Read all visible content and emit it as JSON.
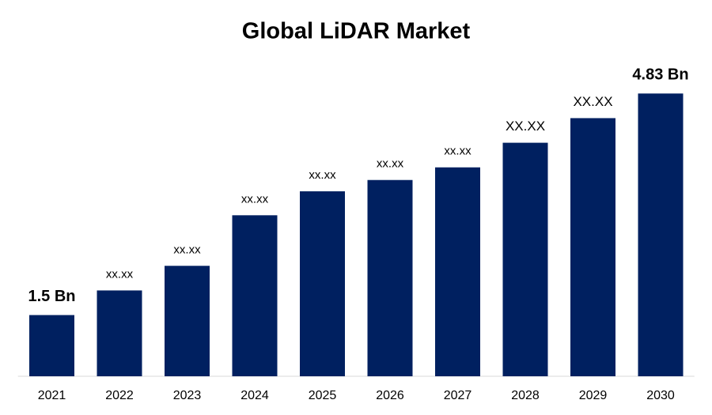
{
  "chart_data": {
    "type": "bar",
    "title": "Global LiDAR Market",
    "categories": [
      "2021",
      "2022",
      "2023",
      "2024",
      "2025",
      "2026",
      "2027",
      "2028",
      "2029",
      "2030"
    ],
    "values": [
      1.5,
      1.87,
      2.24,
      3.0,
      3.36,
      3.53,
      3.72,
      4.09,
      4.46,
      4.83
    ],
    "value_labels": [
      "1.5 Bn",
      "xx.xx",
      "xx.xx",
      "xx.xx",
      "xx.xx",
      "xx.xx",
      "xx.xx",
      "XX.XX",
      "XX.XX",
      "4.83 Bn"
    ],
    "color": "#002060",
    "ylim": [
      0.58,
      5.0
    ]
  }
}
